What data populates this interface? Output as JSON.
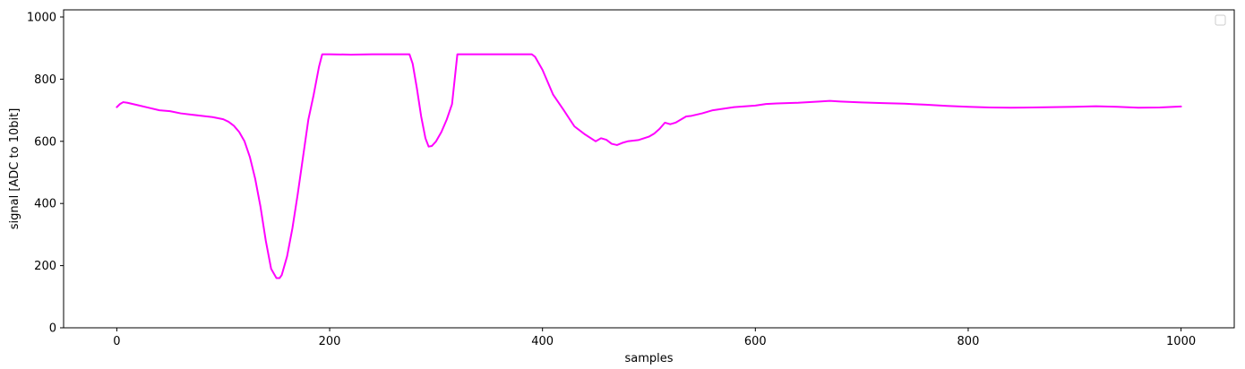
{
  "chart_data": {
    "type": "line",
    "title": "",
    "xlabel": "samples",
    "ylabel": "signal [ADC to 10bit]",
    "xlim": [
      -50,
      1050
    ],
    "ylim": [
      0,
      1023
    ],
    "x_ticks": [
      0,
      200,
      400,
      600,
      800,
      1000
    ],
    "x_tick_labels": [
      "0",
      "200",
      "400",
      "600",
      "800",
      "1000"
    ],
    "y_ticks": [
      0,
      200,
      400,
      600,
      800,
      1000
    ],
    "y_tick_labels": [
      "0",
      "200",
      "400",
      "600",
      "800",
      "1000"
    ],
    "grid": false,
    "legend": {
      "placement": "top-right",
      "entries": []
    },
    "series": [
      {
        "color": "#ff00ff",
        "x": [
          0,
          3,
          6,
          10,
          20,
          30,
          40,
          50,
          60,
          70,
          80,
          90,
          100,
          105,
          110,
          115,
          120,
          125,
          130,
          135,
          140,
          145,
          150,
          153,
          155,
          160,
          165,
          170,
          175,
          180,
          185,
          190,
          193,
          200,
          220,
          240,
          260,
          275,
          278,
          282,
          286,
          290,
          293,
          296,
          300,
          305,
          310,
          315,
          320,
          330,
          350,
          370,
          390,
          393,
          400,
          410,
          420,
          430,
          440,
          450,
          455,
          460,
          465,
          470,
          475,
          480,
          490,
          500,
          505,
          510,
          515,
          520,
          525,
          530,
          535,
          540,
          550,
          560,
          580,
          600,
          610,
          620,
          640,
          660,
          670,
          680,
          700,
          720,
          740,
          760,
          780,
          800,
          820,
          840,
          860,
          880,
          900,
          920,
          940,
          960,
          980,
          1000
        ],
        "y": [
          710,
          720,
          726,
          724,
          716,
          708,
          700,
          697,
          690,
          686,
          682,
          678,
          671,
          663,
          650,
          630,
          600,
          550,
          480,
          390,
          280,
          190,
          160,
          160,
          170,
          230,
          320,
          430,
          550,
          670,
          750,
          840,
          880,
          880,
          879,
          880,
          880,
          880,
          850,
          770,
          680,
          610,
          583,
          585,
          600,
          630,
          670,
          720,
          880,
          880,
          880,
          880,
          880,
          872,
          830,
          750,
          700,
          648,
          622,
          600,
          610,
          605,
          592,
          588,
          595,
          600,
          604,
          615,
          625,
          640,
          660,
          655,
          660,
          670,
          680,
          682,
          690,
          700,
          710,
          715,
          720,
          722,
          724,
          728,
          730,
          728,
          725,
          723,
          721,
          718,
          714,
          711,
          709,
          708,
          709,
          710,
          711,
          713,
          711,
          708,
          709,
          712
        ]
      }
    ]
  }
}
